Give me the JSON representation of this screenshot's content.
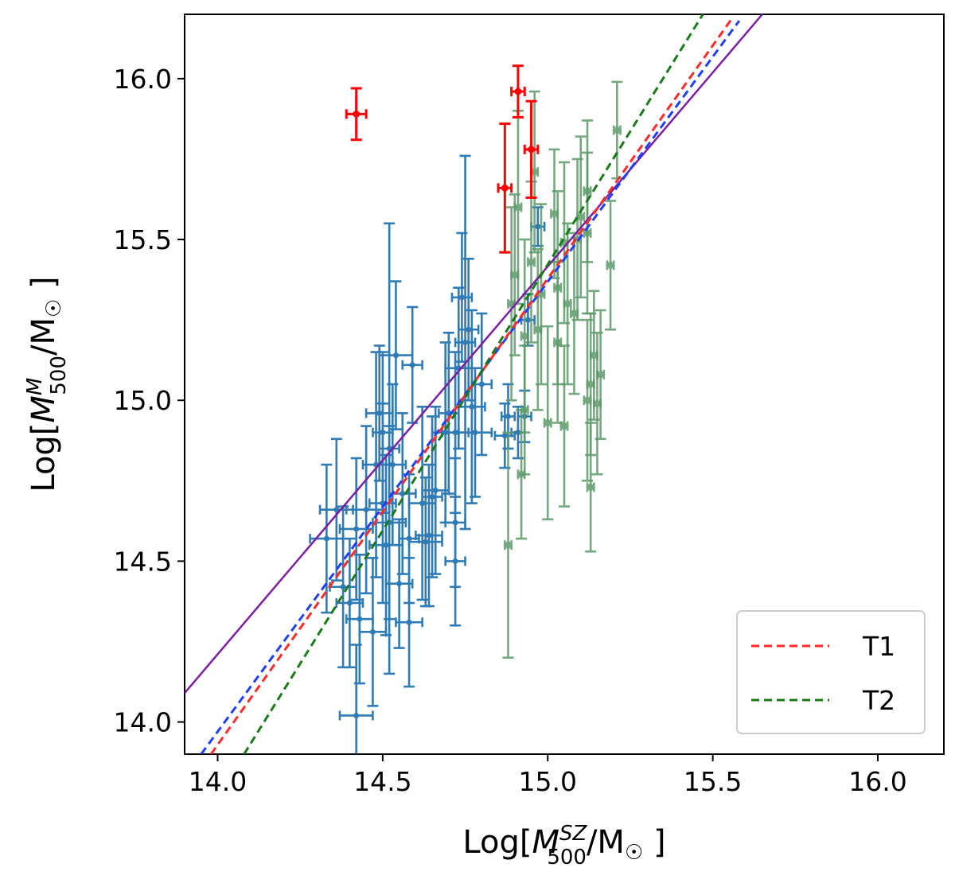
{
  "chart_data": {
    "type": "scatter",
    "title": "",
    "xlabel": "Log[M500^SZ/M☉]",
    "ylabel": "Log[M500^M/M☉]",
    "xlabel_parts": {
      "pre": "Log[",
      "var": "M",
      "sub": "500",
      "sup": "SZ",
      "post": "/M",
      "sun": "☉",
      "end": " ]"
    },
    "ylabel_parts": {
      "pre": "Log[",
      "var": "M",
      "sub": "500",
      "sup": "M",
      "post": "/M",
      "sun": "☉",
      "end": " ]"
    },
    "xlim": [
      13.9,
      16.2
    ],
    "ylim": [
      13.9,
      16.2
    ],
    "xticks": [
      14.0,
      14.5,
      15.0,
      15.5,
      16.0
    ],
    "yticks": [
      14.0,
      14.5,
      15.0,
      15.5,
      16.0
    ],
    "xtick_labels": [
      "14.0",
      "14.5",
      "15.0",
      "15.5",
      "16.0"
    ],
    "ytick_labels": [
      "14.0",
      "14.5",
      "15.0",
      "15.5",
      "16.0"
    ],
    "grid": false,
    "legend_position": "lower-right",
    "legend": [
      {
        "label": "T1",
        "color": "#ff2a2a",
        "style": "dashed"
      },
      {
        "label": "T2",
        "color": "#1a7a1a",
        "style": "dashed"
      }
    ],
    "lines": [
      {
        "name": "purple-fit",
        "color": "#7b1fa2",
        "style": "solid",
        "x": [
          13.9,
          15.65
        ],
        "y": [
          14.09,
          16.2
        ]
      },
      {
        "name": "blue-fit",
        "color": "#1f3fff",
        "style": "dashed",
        "x": [
          13.95,
          15.58
        ],
        "y": [
          13.9,
          16.18
        ]
      },
      {
        "name": "T1",
        "color": "#ff2a2a",
        "style": "dashed",
        "x": [
          13.98,
          15.56
        ],
        "y": [
          13.9,
          16.19
        ]
      },
      {
        "name": "T2",
        "color": "#1a7a1a",
        "style": "dashed",
        "x": [
          14.08,
          15.47
        ],
        "y": [
          13.9,
          16.2
        ]
      }
    ],
    "series": [
      {
        "name": "blue",
        "color": "#2e7bb6",
        "points": [
          [
            14.33,
            14.57,
            0.05,
            0.23
          ],
          [
            14.36,
            14.66,
            0.05,
            0.22
          ],
          [
            14.38,
            14.42,
            0.04,
            0.25
          ],
          [
            14.4,
            14.37,
            0.04,
            0.2
          ],
          [
            14.42,
            14.6,
            0.05,
            0.22
          ],
          [
            14.43,
            14.32,
            0.04,
            0.2
          ],
          [
            14.42,
            14.02,
            0.05,
            0.22
          ],
          [
            14.45,
            14.66,
            0.06,
            0.26
          ],
          [
            14.47,
            14.28,
            0.04,
            0.23
          ],
          [
            14.48,
            14.8,
            0.04,
            0.35
          ],
          [
            14.49,
            14.96,
            0.04,
            0.21
          ],
          [
            14.5,
            14.68,
            0.04,
            0.31
          ],
          [
            14.5,
            14.9,
            0.03,
            0.25
          ],
          [
            14.51,
            14.55,
            0.05,
            0.28
          ],
          [
            14.52,
            14.85,
            0.03,
            0.7
          ],
          [
            14.53,
            14.8,
            0.04,
            0.25
          ],
          [
            14.52,
            14.62,
            0.05,
            0.3
          ],
          [
            14.55,
            14.43,
            0.04,
            0.2
          ],
          [
            14.56,
            14.71,
            0.04,
            0.25
          ],
          [
            14.54,
            15.14,
            0.05,
            0.23
          ],
          [
            14.58,
            14.57,
            0.03,
            0.2
          ],
          [
            14.58,
            14.31,
            0.04,
            0.2
          ],
          [
            14.59,
            15.11,
            0.03,
            0.18
          ],
          [
            14.62,
            14.68,
            0.04,
            0.3
          ],
          [
            14.63,
            14.56,
            0.05,
            0.2
          ],
          [
            14.64,
            14.58,
            0.04,
            0.22
          ],
          [
            14.65,
            14.7,
            0.03,
            0.25
          ],
          [
            14.66,
            14.72,
            0.04,
            0.26
          ],
          [
            14.69,
            14.9,
            0.04,
            0.28
          ],
          [
            14.7,
            14.96,
            0.03,
            0.25
          ],
          [
            14.72,
            14.9,
            0.04,
            0.25
          ],
          [
            14.73,
            15.1,
            0.04,
            0.25
          ],
          [
            14.72,
            14.62,
            0.03,
            0.2
          ],
          [
            14.72,
            14.5,
            0.03,
            0.2
          ],
          [
            14.74,
            15.32,
            0.03,
            0.2
          ],
          [
            14.75,
            15.18,
            0.03,
            0.58
          ],
          [
            14.76,
            15.22,
            0.03,
            0.22
          ],
          [
            14.77,
            14.98,
            0.04,
            0.3
          ],
          [
            14.78,
            14.9,
            0.05,
            0.2
          ],
          [
            14.8,
            15.05,
            0.03,
            0.22
          ],
          [
            14.87,
            14.89,
            0.03,
            0.1
          ],
          [
            14.88,
            14.95,
            0.02,
            0.1
          ],
          [
            14.91,
            14.9,
            0.02,
            0.08
          ],
          [
            14.93,
            14.95,
            0.02,
            0.08
          ],
          [
            14.97,
            15.54,
            0.02,
            0.06
          ],
          [
            14.94,
            15.25,
            0.02,
            0.08
          ]
        ]
      },
      {
        "name": "green",
        "color": "#5e9a6a",
        "points": [
          [
            14.88,
            14.55,
            0.01,
            0.35
          ],
          [
            14.89,
            15.3,
            0.01,
            0.3
          ],
          [
            14.9,
            15.39,
            0.01,
            0.25
          ],
          [
            14.91,
            15.6,
            0.01,
            0.3
          ],
          [
            14.93,
            15.2,
            0.01,
            0.3
          ],
          [
            14.92,
            14.77,
            0.01,
            0.2
          ],
          [
            14.93,
            14.97,
            0.01,
            0.2
          ],
          [
            14.95,
            15.43,
            0.01,
            0.25
          ],
          [
            14.96,
            15.71,
            0.01,
            0.25
          ],
          [
            14.97,
            15.22,
            0.01,
            0.25
          ],
          [
            14.98,
            15.33,
            0.01,
            0.28
          ],
          [
            15.0,
            14.93,
            0.01,
            0.3
          ],
          [
            15.02,
            15.58,
            0.01,
            0.2
          ],
          [
            15.03,
            15.18,
            0.01,
            0.25
          ],
          [
            15.03,
            15.35,
            0.01,
            0.3
          ],
          [
            15.05,
            15.49,
            0.01,
            0.25
          ],
          [
            15.05,
            14.92,
            0.01,
            0.25
          ],
          [
            15.06,
            15.3,
            0.01,
            0.25
          ],
          [
            15.08,
            15.27,
            0.01,
            0.25
          ],
          [
            15.09,
            15.5,
            0.01,
            0.25
          ],
          [
            15.1,
            15.57,
            0.01,
            0.25
          ],
          [
            15.12,
            15.0,
            0.01,
            0.25
          ],
          [
            15.12,
            15.65,
            0.01,
            0.22
          ],
          [
            15.13,
            15.05,
            0.01,
            0.22
          ],
          [
            15.13,
            14.73,
            0.01,
            0.2
          ],
          [
            15.14,
            15.14,
            0.01,
            0.2
          ],
          [
            15.16,
            15.08,
            0.01,
            0.2
          ],
          [
            15.19,
            15.42,
            0.01,
            0.2
          ],
          [
            15.21,
            15.84,
            0.01,
            0.15
          ],
          [
            15.15,
            14.99,
            0.01,
            0.22
          ],
          [
            15.12,
            15.52,
            0.01,
            0.25
          ]
        ]
      },
      {
        "name": "red",
        "color": "#ff0000",
        "points": [
          [
            14.42,
            15.89,
            0.03,
            0.08
          ],
          [
            14.87,
            15.66,
            0.02,
            0.2
          ],
          [
            14.91,
            15.96,
            0.02,
            0.08
          ],
          [
            14.95,
            15.78,
            0.02,
            0.15
          ]
        ]
      }
    ]
  }
}
